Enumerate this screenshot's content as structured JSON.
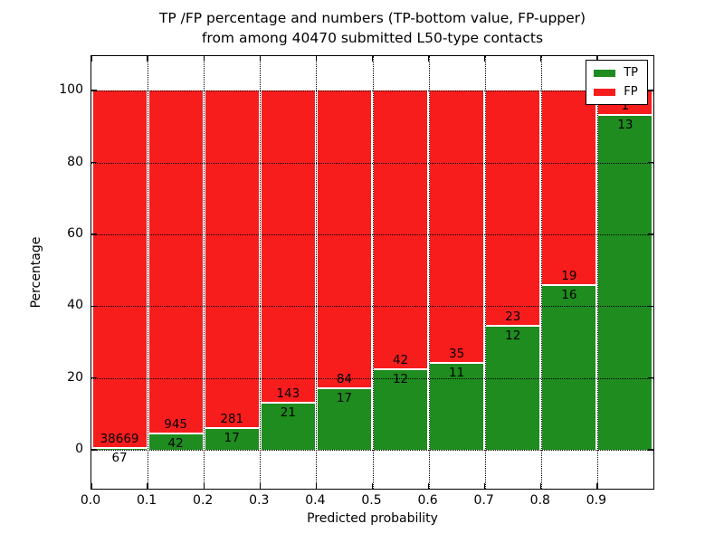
{
  "chart_data": {
    "type": "bar",
    "stacked": true,
    "title_lines": [
      "TP /FP percentage and numbers (TP-bottom value, FP-upper)",
      "from among 40470 submitted L50-type contacts"
    ],
    "total_submitted": 40470,
    "xlabel": "Predicted probability",
    "ylabel": "Percentage",
    "xlim": [
      0.0,
      1.0
    ],
    "ylim": [
      -10.8,
      109.6
    ],
    "grid": true,
    "x_tick_values": [
      0.0,
      0.1,
      0.2,
      0.3,
      0.4,
      0.5,
      0.6,
      0.7,
      0.8,
      0.9
    ],
    "x_tick_labels": [
      "0.0",
      "0.1",
      "0.2",
      "0.3",
      "0.4",
      "0.5",
      "0.6",
      "0.7",
      "0.8",
      "0.9"
    ],
    "y_tick_values": [
      0,
      20,
      40,
      60,
      80,
      100
    ],
    "y_tick_labels": [
      "0",
      "20",
      "40",
      "60",
      "80",
      "100"
    ],
    "categories": [
      "0.0-0.1",
      "0.1-0.2",
      "0.2-0.3",
      "0.3-0.4",
      "0.4-0.5",
      "0.5-0.6",
      "0.6-0.7",
      "0.7-0.8",
      "0.8-0.9",
      "0.9-1.0"
    ],
    "series": [
      {
        "name": "TP",
        "counts": [
          67,
          42,
          17,
          21,
          17,
          12,
          11,
          12,
          16,
          13
        ]
      },
      {
        "name": "FP",
        "counts": [
          38669,
          945,
          281,
          143,
          84,
          42,
          35,
          23,
          19,
          1
        ]
      }
    ],
    "tp_percent": [
      0.17,
      4.26,
      5.7,
      12.8,
      16.83,
      22.22,
      23.91,
      34.29,
      45.71,
      92.86
    ],
    "fp_percent": [
      99.83,
      95.74,
      94.3,
      87.2,
      83.17,
      77.78,
      76.09,
      65.71,
      54.29,
      7.14
    ],
    "legend": {
      "position": "upper right",
      "entries": [
        {
          "label": "TP",
          "color": "#1e8c1e"
        },
        {
          "label": "FP",
          "color": "#f81d1d"
        }
      ]
    },
    "colors": {
      "tp": "#1e8c1e",
      "fp": "#f81d1d",
      "grid": "#000000",
      "text": "#000000",
      "background": "#ffffff"
    }
  }
}
